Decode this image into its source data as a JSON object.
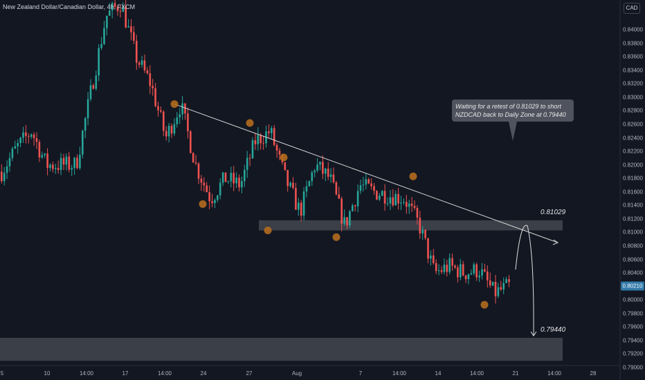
{
  "header": {
    "title": "New Zealand Dollar/Canadian Dollar, 4h, FXCM",
    "currency": "CAD"
  },
  "colors": {
    "background": "#131722",
    "bull": "#26a69a",
    "bear": "#ef5350",
    "zone": "#5d6068",
    "marker": "#b46b1e",
    "trendline": "#d7d7d7"
  },
  "annotations": {
    "note": "Waiting for a retest of 0.81029 to short\nNZDCAD back to Daily Zone at 0.79440",
    "upper_level": "0.81029",
    "lower_level": "0.79440",
    "last_price": "0.80210"
  },
  "chart_data": {
    "type": "candlestick",
    "title": "New Zealand Dollar/Canadian Dollar, 4h, FXCM",
    "ylim": [
      0.79,
      0.844
    ],
    "y_ticks": [
      "0.84000",
      "0.83800",
      "0.83600",
      "0.83400",
      "0.83200",
      "0.83000",
      "0.82800",
      "0.82600",
      "0.82400",
      "0.82200",
      "0.82000",
      "0.81800",
      "0.81600",
      "0.81400",
      "0.81200",
      "0.81000",
      "0.80800",
      "0.80600",
      "0.80400",
      "0.80200",
      "0.80000",
      "0.79800",
      "0.79600",
      "0.79400",
      "0.79200",
      "0.79000"
    ],
    "x_ticks": [
      "5",
      "10",
      "14:00",
      "17",
      "14:00",
      "24",
      "27",
      "Aug",
      "7",
      "14:00",
      "14",
      "14:00",
      "21",
      "14:00",
      "28"
    ],
    "zones": [
      {
        "label": "0.81029",
        "low": 0.8103,
        "high": 0.8118
      },
      {
        "label": "0.79440",
        "low": 0.791,
        "high": 0.7944
      }
    ],
    "trendline": {
      "from": {
        "x": "Jul 21 14:00",
        "y": 0.829
      },
      "to": {
        "x": "Aug 19",
        "y": 0.8085
      }
    },
    "swing_points": [
      {
        "x": "Jul 21 14:00",
        "y": 0.829
      },
      {
        "x": "Jul 24",
        "y": 0.8142
      },
      {
        "x": "Jul 26",
        "y": 0.8262
      },
      {
        "x": "Jul 28",
        "y": 0.8103
      },
      {
        "x": "Jul 29",
        "y": 0.8211
      },
      {
        "x": "Aug 3",
        "y": 0.8093
      },
      {
        "x": "Aug 10",
        "y": 0.8183
      },
      {
        "x": "Aug 17",
        "y": 0.7993
      }
    ],
    "projection": {
      "from": 0.8045,
      "peak": 0.8108,
      "target": 0.7944
    },
    "path": [
      [
        0.819,
        0.8195
      ],
      [
        0.8225,
        0.8215
      ],
      [
        0.825,
        0.824
      ],
      [
        0.82,
        0.8265
      ],
      [
        0.82,
        0.817
      ],
      [
        0.82,
        0.8185
      ],
      [
        0.831,
        0.838
      ],
      [
        0.842,
        0.845
      ],
      [
        0.844,
        0.84
      ],
      [
        0.836,
        0.834
      ],
      [
        0.832,
        0.8265
      ],
      [
        0.824,
        0.825
      ],
      [
        0.829,
        0.825
      ],
      [
        0.82,
        0.817
      ],
      [
        0.815,
        0.8165
      ],
      [
        0.818,
        0.82
      ],
      [
        0.817,
        0.821
      ],
      [
        0.8235,
        0.825
      ],
      [
        0.825,
        0.822
      ],
      [
        0.818,
        0.815
      ],
      [
        0.813,
        0.8115
      ],
      [
        0.82,
        0.8205
      ],
      [
        0.818,
        0.815
      ],
      [
        0.811,
        0.814
      ],
      [
        0.817,
        0.8165
      ],
      [
        0.816,
        0.815
      ],
      [
        0.8155,
        0.814
      ],
      [
        0.815,
        0.818
      ],
      [
        0.811,
        0.806
      ],
      [
        0.804,
        0.803
      ],
      [
        0.805,
        0.8035
      ],
      [
        0.804,
        0.802
      ],
      [
        0.8045,
        0.803
      ],
      [
        0.801,
        0.804
      ],
      [
        0.802,
        0.8045
      ]
    ]
  }
}
